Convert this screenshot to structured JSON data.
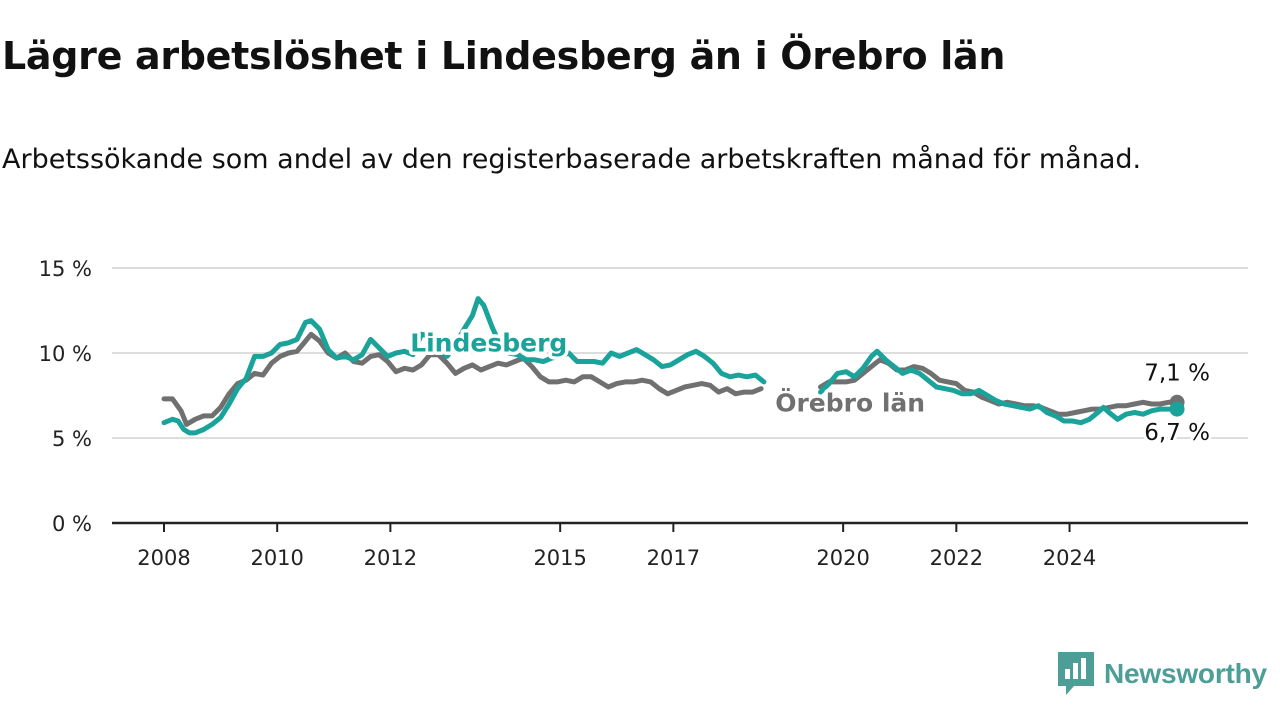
{
  "header": {
    "title": "Lägre arbetslöshet i Lindesberg än i Örebro län",
    "subtitle": "Arbetssökande som andel av den registerbaserade arbetskraften månad för månad."
  },
  "brand": {
    "name": "Newsworthy",
    "icon": "newsworthy-chart-logo-icon"
  },
  "colors": {
    "lindesberg": "#1aa39a",
    "orebro": "#707070",
    "grid": "#dddddd",
    "axis": "#222222"
  },
  "chart_data": {
    "type": "line",
    "ylim": [
      0,
      15
    ],
    "xlim": [
      2008,
      2026.8
    ],
    "yticks": [
      {
        "value": 0,
        "label": "0 %"
      },
      {
        "value": 5,
        "label": "5 %"
      },
      {
        "value": 10,
        "label": "10 %"
      },
      {
        "value": 15,
        "label": "15 %"
      }
    ],
    "xticks": [
      {
        "value": 2008,
        "label": "2008"
      },
      {
        "value": 2010,
        "label": "2010"
      },
      {
        "value": 2012,
        "label": "2012"
      },
      {
        "value": 2015,
        "label": "2015"
      },
      {
        "value": 2017,
        "label": "2017"
      },
      {
        "value": 2020,
        "label": "2020"
      },
      {
        "value": 2022,
        "label": "2022"
      },
      {
        "value": 2024,
        "label": "2024"
      }
    ],
    "grid": true,
    "series": [
      {
        "name": "Örebro län",
        "color": "#707070",
        "end_label": "7,1 %",
        "segments": [
          [
            [
              2008.0,
              7.3
            ],
            [
              2008.15,
              7.3
            ],
            [
              2008.3,
              6.6
            ],
            [
              2008.4,
              5.8
            ],
            [
              2008.55,
              6.1
            ],
            [
              2008.7,
              6.3
            ],
            [
              2008.85,
              6.3
            ],
            [
              2009.0,
              6.8
            ],
            [
              2009.15,
              7.6
            ],
            [
              2009.3,
              8.2
            ],
            [
              2009.45,
              8.4
            ],
            [
              2009.6,
              8.8
            ],
            [
              2009.75,
              8.7
            ],
            [
              2009.9,
              9.4
            ],
            [
              2010.05,
              9.8
            ],
            [
              2010.2,
              10.0
            ],
            [
              2010.35,
              10.1
            ],
            [
              2010.5,
              10.7
            ],
            [
              2010.6,
              11.1
            ],
            [
              2010.75,
              10.7
            ],
            [
              2010.9,
              10.0
            ],
            [
              2011.05,
              9.7
            ],
            [
              2011.2,
              10.0
            ],
            [
              2011.35,
              9.5
            ],
            [
              2011.5,
              9.4
            ],
            [
              2011.65,
              9.8
            ],
            [
              2011.8,
              9.9
            ],
            [
              2011.95,
              9.5
            ],
            [
              2012.1,
              8.9
            ],
            [
              2012.25,
              9.1
            ],
            [
              2012.4,
              9.0
            ],
            [
              2012.55,
              9.3
            ],
            [
              2012.7,
              9.9
            ],
            [
              2012.85,
              9.9
            ],
            [
              2013.0,
              9.4
            ],
            [
              2013.15,
              8.8
            ],
            [
              2013.3,
              9.1
            ],
            [
              2013.45,
              9.3
            ],
            [
              2013.6,
              9.0
            ],
            [
              2013.75,
              9.2
            ],
            [
              2013.9,
              9.4
            ],
            [
              2014.05,
              9.3
            ],
            [
              2014.2,
              9.5
            ],
            [
              2014.35,
              9.7
            ],
            [
              2014.5,
              9.2
            ],
            [
              2014.65,
              8.6
            ],
            [
              2014.8,
              8.3
            ],
            [
              2014.95,
              8.3
            ],
            [
              2015.1,
              8.4
            ],
            [
              2015.25,
              8.3
            ],
            [
              2015.4,
              8.6
            ],
            [
              2015.55,
              8.6
            ],
            [
              2015.7,
              8.3
            ],
            [
              2015.85,
              8.0
            ],
            [
              2016.0,
              8.2
            ],
            [
              2016.15,
              8.3
            ],
            [
              2016.3,
              8.3
            ],
            [
              2016.45,
              8.4
            ],
            [
              2016.6,
              8.3
            ],
            [
              2016.75,
              7.9
            ],
            [
              2016.9,
              7.6
            ],
            [
              2017.05,
              7.8
            ],
            [
              2017.2,
              8.0
            ],
            [
              2017.35,
              8.1
            ],
            [
              2017.5,
              8.2
            ],
            [
              2017.65,
              8.1
            ],
            [
              2017.8,
              7.7
            ],
            [
              2017.95,
              7.9
            ],
            [
              2018.1,
              7.6
            ],
            [
              2018.25,
              7.7
            ],
            [
              2018.4,
              7.7
            ],
            [
              2018.55,
              7.9
            ]
          ],
          [
            [
              2019.6,
              8.0
            ],
            [
              2019.75,
              8.3
            ],
            [
              2019.9,
              8.3
            ],
            [
              2020.05,
              8.3
            ],
            [
              2020.2,
              8.4
            ],
            [
              2020.35,
              8.8
            ],
            [
              2020.5,
              9.2
            ],
            [
              2020.65,
              9.6
            ],
            [
              2020.8,
              9.4
            ],
            [
              2020.95,
              9.0
            ],
            [
              2021.1,
              9.0
            ],
            [
              2021.25,
              9.2
            ],
            [
              2021.4,
              9.1
            ],
            [
              2021.55,
              8.8
            ],
            [
              2021.7,
              8.4
            ],
            [
              2021.85,
              8.3
            ],
            [
              2022.0,
              8.2
            ],
            [
              2022.15,
              7.8
            ],
            [
              2022.3,
              7.7
            ],
            [
              2022.45,
              7.4
            ],
            [
              2022.6,
              7.2
            ],
            [
              2022.75,
              7.0
            ],
            [
              2022.9,
              7.1
            ],
            [
              2023.05,
              7.0
            ],
            [
              2023.2,
              6.9
            ],
            [
              2023.35,
              6.9
            ],
            [
              2023.5,
              6.8
            ],
            [
              2023.65,
              6.6
            ],
            [
              2023.8,
              6.4
            ],
            [
              2023.95,
              6.4
            ],
            [
              2024.1,
              6.5
            ],
            [
              2024.25,
              6.6
            ],
            [
              2024.4,
              6.7
            ],
            [
              2024.55,
              6.7
            ],
            [
              2024.7,
              6.8
            ],
            [
              2024.85,
              6.9
            ],
            [
              2025.0,
              6.9
            ],
            [
              2025.15,
              7.0
            ],
            [
              2025.3,
              7.1
            ],
            [
              2025.45,
              7.0
            ],
            [
              2025.6,
              7.0
            ],
            [
              2025.75,
              7.1
            ],
            [
              2025.9,
              7.1
            ]
          ]
        ]
      },
      {
        "name": "Lindesberg",
        "color": "#1aa39a",
        "end_label": "6,7 %",
        "segments": [
          [
            [
              2008.0,
              5.9
            ],
            [
              2008.15,
              6.1
            ],
            [
              2008.25,
              6.0
            ],
            [
              2008.35,
              5.5
            ],
            [
              2008.45,
              5.3
            ],
            [
              2008.55,
              5.3
            ],
            [
              2008.7,
              5.5
            ],
            [
              2008.85,
              5.8
            ],
            [
              2009.0,
              6.2
            ],
            [
              2009.15,
              7.0
            ],
            [
              2009.3,
              7.9
            ],
            [
              2009.45,
              8.5
            ],
            [
              2009.6,
              9.8
            ],
            [
              2009.75,
              9.8
            ],
            [
              2009.9,
              10.0
            ],
            [
              2010.05,
              10.5
            ],
            [
              2010.2,
              10.6
            ],
            [
              2010.35,
              10.8
            ],
            [
              2010.5,
              11.8
            ],
            [
              2010.6,
              11.9
            ],
            [
              2010.75,
              11.4
            ],
            [
              2010.9,
              10.2
            ],
            [
              2011.05,
              9.7
            ],
            [
              2011.2,
              9.8
            ],
            [
              2011.35,
              9.6
            ],
            [
              2011.5,
              9.9
            ],
            [
              2011.65,
              10.8
            ],
            [
              2011.8,
              10.3
            ],
            [
              2011.95,
              9.8
            ],
            [
              2012.1,
              10.0
            ],
            [
              2012.25,
              10.1
            ],
            [
              2012.4,
              9.9
            ],
            [
              2012.55,
              11.1
            ],
            [
              2012.7,
              11.0
            ],
            [
              2012.85,
              10.2
            ],
            [
              2013.0,
              9.8
            ],
            [
              2013.15,
              10.5
            ],
            [
              2013.3,
              11.4
            ],
            [
              2013.45,
              12.2
            ],
            [
              2013.55,
              13.2
            ],
            [
              2013.65,
              12.8
            ],
            [
              2013.8,
              11.5
            ],
            [
              2013.95,
              10.4
            ],
            [
              2014.1,
              10.0
            ],
            [
              2014.25,
              9.9
            ],
            [
              2014.4,
              9.6
            ],
            [
              2014.55,
              9.6
            ],
            [
              2014.7,
              9.5
            ],
            [
              2014.85,
              9.7
            ],
            [
              2015.0,
              9.8
            ],
            [
              2015.15,
              10.0
            ],
            [
              2015.3,
              9.5
            ],
            [
              2015.45,
              9.5
            ],
            [
              2015.6,
              9.5
            ],
            [
              2015.75,
              9.4
            ],
            [
              2015.9,
              10.0
            ],
            [
              2016.05,
              9.8
            ],
            [
              2016.2,
              10.0
            ],
            [
              2016.35,
              10.2
            ],
            [
              2016.5,
              9.9
            ],
            [
              2016.65,
              9.6
            ],
            [
              2016.8,
              9.2
            ],
            [
              2016.95,
              9.3
            ],
            [
              2017.1,
              9.6
            ],
            [
              2017.25,
              9.9
            ],
            [
              2017.4,
              10.1
            ],
            [
              2017.55,
              9.8
            ],
            [
              2017.7,
              9.4
            ],
            [
              2017.85,
              8.8
            ],
            [
              2018.0,
              8.6
            ],
            [
              2018.15,
              8.7
            ],
            [
              2018.3,
              8.6
            ],
            [
              2018.45,
              8.7
            ],
            [
              2018.6,
              8.3
            ]
          ],
          [
            [
              2019.6,
              7.7
            ],
            [
              2019.75,
              8.2
            ],
            [
              2019.9,
              8.8
            ],
            [
              2020.05,
              8.9
            ],
            [
              2020.2,
              8.6
            ],
            [
              2020.35,
              9.1
            ],
            [
              2020.5,
              9.8
            ],
            [
              2020.6,
              10.1
            ],
            [
              2020.75,
              9.6
            ],
            [
              2020.9,
              9.2
            ],
            [
              2021.05,
              8.8
            ],
            [
              2021.2,
              9.0
            ],
            [
              2021.35,
              8.8
            ],
            [
              2021.5,
              8.4
            ],
            [
              2021.65,
              8.0
            ],
            [
              2021.8,
              7.9
            ],
            [
              2021.95,
              7.8
            ],
            [
              2022.1,
              7.6
            ],
            [
              2022.25,
              7.6
            ],
            [
              2022.4,
              7.8
            ],
            [
              2022.55,
              7.5
            ],
            [
              2022.7,
              7.2
            ],
            [
              2022.85,
              7.0
            ],
            [
              2023.0,
              6.9
            ],
            [
              2023.15,
              6.8
            ],
            [
              2023.3,
              6.7
            ],
            [
              2023.45,
              6.9
            ],
            [
              2023.6,
              6.5
            ],
            [
              2023.75,
              6.3
            ],
            [
              2023.9,
              6.0
            ],
            [
              2024.05,
              6.0
            ],
            [
              2024.2,
              5.9
            ],
            [
              2024.35,
              6.1
            ],
            [
              2024.5,
              6.5
            ],
            [
              2024.6,
              6.8
            ],
            [
              2024.7,
              6.5
            ],
            [
              2024.85,
              6.1
            ],
            [
              2025.0,
              6.4
            ],
            [
              2025.15,
              6.5
            ],
            [
              2025.3,
              6.4
            ],
            [
              2025.45,
              6.6
            ],
            [
              2025.6,
              6.7
            ],
            [
              2025.75,
              6.7
            ],
            [
              2025.9,
              6.7
            ]
          ]
        ]
      }
    ]
  }
}
